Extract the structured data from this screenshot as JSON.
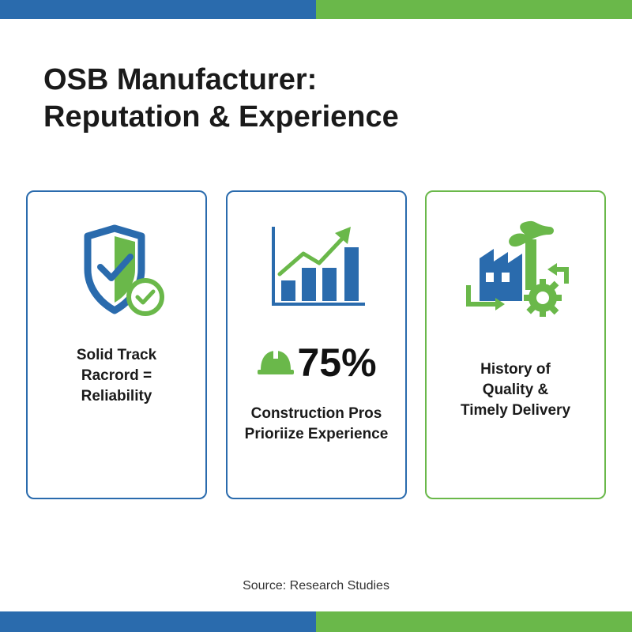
{
  "colors": {
    "blue": "#2a6bad",
    "green": "#6ab84a",
    "text": "#1a1a1a"
  },
  "title": {
    "line1": "OSB Manufacturer:",
    "line2": "Reputation & Experience"
  },
  "cards": [
    {
      "icon": "shield-check-icon",
      "text_lines": [
        "Solid Track",
        "Racrord =",
        "Reliability"
      ]
    },
    {
      "icon": "rising-bar-chart-icon",
      "stat_icon": "hard-hat-icon",
      "stat_value": "75%",
      "text_lines": [
        "Construction Pros",
        "Prioriize Experience"
      ]
    },
    {
      "icon": "factory-gear-icon",
      "text_lines": [
        "History of",
        "Quality &",
        "Timely Delivery"
      ]
    }
  ],
  "source": "Source: Research Studies"
}
